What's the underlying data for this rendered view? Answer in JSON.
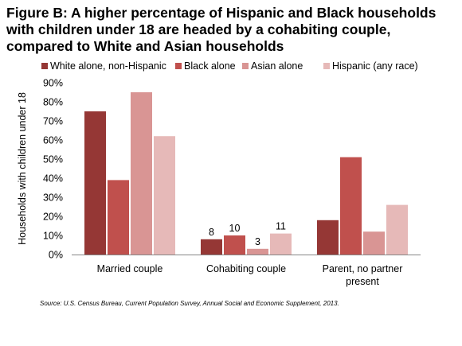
{
  "chart_data": {
    "type": "bar",
    "title_lines": [
      "Figure B: A higher percentage of Hispanic and Black households",
      "with children under 18 are headed by a cohabiting couple,",
      "compared to White and Asian households"
    ],
    "xlabel": "",
    "ylabel": "Households with children under 18",
    "categories": [
      [
        "Married couple"
      ],
      [
        "Cohabiting couple"
      ],
      [
        "Parent, no partner",
        "present"
      ]
    ],
    "ylim": [
      0,
      90
    ],
    "yticks": [
      "0%",
      "10%",
      "20%",
      "30%",
      "40%",
      "50%",
      "60%",
      "70%",
      "80%",
      "90%"
    ],
    "legend_position": "top",
    "series": [
      {
        "name": "White alone, non-Hispanic",
        "color": "#953735",
        "values": [
          75,
          8,
          18
        ]
      },
      {
        "name": "Black alone",
        "color": "#c0504d",
        "values": [
          39,
          10,
          51
        ]
      },
      {
        "name": "Asian alone",
        "color": "#d99594",
        "values": [
          85,
          3,
          12
        ]
      },
      {
        "name": "Hispanic (any race)",
        "color": "#e6b9b8",
        "values": [
          62,
          11,
          26
        ]
      }
    ],
    "data_labels": [
      {
        "category": 1,
        "series": 0,
        "text": "8"
      },
      {
        "category": 1,
        "series": 1,
        "text": "10"
      },
      {
        "category": 1,
        "series": 2,
        "text": "3"
      },
      {
        "category": 1,
        "series": 3,
        "text": "11"
      }
    ],
    "source": "Source: U.S. Census Bureau, Current Population Survey, Annual Social and Economic Supplement, 2013."
  }
}
